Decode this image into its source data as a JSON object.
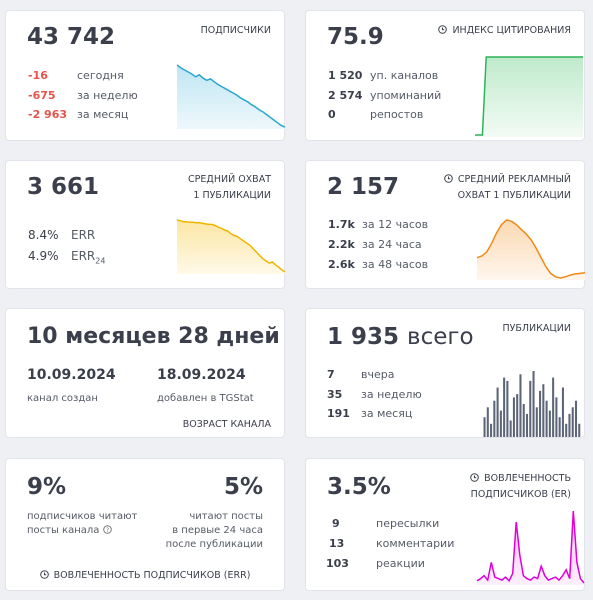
{
  "cards": [
    {
      "value": "43 742",
      "title": "ПОДПИСЧИКИ",
      "rows": [
        {
          "value": "-16",
          "label": "сегодня"
        },
        {
          "value": "-675",
          "label": "за неделю"
        },
        {
          "value": "-2 963",
          "label": "за месяц"
        }
      ],
      "sparkline": [
        100,
        96,
        93,
        90,
        87,
        83,
        86,
        81,
        78,
        80,
        76,
        72,
        69,
        66,
        63,
        60,
        57,
        53,
        50,
        47,
        43,
        40,
        36,
        33,
        29,
        25,
        21,
        17,
        13,
        11
      ]
    },
    {
      "value": "75.9",
      "title": "ИНДЕКС ЦИТИРОВАНИЯ",
      "rows": [
        {
          "value": "1 520",
          "label": "уп. каналов"
        },
        {
          "value": "2 574",
          "label": "упоминаний"
        },
        {
          "value": "0",
          "label": "репостов"
        }
      ],
      "sparkline": [
        0,
        0,
        0,
        100,
        100,
        100,
        100,
        100,
        100,
        100,
        100,
        100,
        100,
        100,
        100,
        100,
        100,
        100,
        100,
        100,
        100,
        100,
        100,
        100,
        100,
        100,
        100,
        100,
        100,
        100
      ]
    },
    {
      "value": "3 661",
      "title_lines": [
        "СРЕДНИЙ ОХВАТ",
        "1 ПУБЛИКАЦИИ"
      ],
      "rows": [
        {
          "value": "8.4%",
          "label": "ERR"
        },
        {
          "value": "4.9%",
          "label": "ERR",
          "sub": "24"
        }
      ],
      "sparkline": [
        100,
        99,
        97,
        97,
        96,
        96,
        95,
        95,
        94,
        93,
        92,
        92,
        90,
        87,
        85,
        82,
        80,
        75,
        72,
        70,
        66,
        62,
        58,
        54,
        48,
        42,
        36,
        30,
        26,
        22,
        24,
        19,
        15,
        10,
        6
      ]
    },
    {
      "value": "2 157",
      "title_lines": [
        "СРЕДНИЙ РЕКЛАМНЫЙ",
        "ОХВАТ 1 ПУБЛИКАЦИИ"
      ],
      "rows": [
        {
          "value": "1.7k",
          "label": "за 12 часов"
        },
        {
          "value": "2.2k",
          "label": "за 24 часа"
        },
        {
          "value": "2.6k",
          "label": "за 48 часов"
        }
      ],
      "sparkline": [
        35,
        38,
        45,
        60,
        78,
        92,
        100,
        98,
        92,
        84,
        76,
        66,
        52,
        36,
        20,
        8,
        2,
        0,
        2,
        5,
        7,
        8,
        9
      ]
    },
    {
      "value": "10 месяцев 28 дней",
      "dates": [
        {
          "value": "10.09.2024",
          "label": "канал создан"
        },
        {
          "value": "18.09.2024",
          "label": "добавлен в TGStat"
        }
      ],
      "footer": "ВОЗРАСТ КАНАЛА"
    },
    {
      "value": "1 935",
      "value_suffix": "всего",
      "title": "ПУБЛИКАЦИИ",
      "rows": [
        {
          "value": "7",
          "label": "вчера"
        },
        {
          "value": "35",
          "label": "за неделю"
        },
        {
          "value": "191",
          "label": "за месяц"
        }
      ],
      "bars": [
        30,
        45,
        20,
        55,
        75,
        40,
        90,
        85,
        25,
        60,
        65,
        95,
        50,
        35,
        85,
        100,
        45,
        70,
        80,
        55,
        40,
        90,
        60,
        30,
        75,
        20,
        35,
        45,
        55,
        20
      ]
    },
    {
      "left": {
        "value": "9%",
        "lines": [
          "подписчиков читают",
          "посты канала"
        ]
      },
      "right": {
        "value": "5%",
        "lines": [
          "читают посты",
          "в первые 24 часа",
          "после публикации"
        ]
      },
      "footer": "ВОВЛЕЧЕННОСТЬ ПОДПИСЧИКОВ (ERR)"
    },
    {
      "value": "3.5%",
      "title_lines": [
        "ВОВЛЕЧЕННОСТЬ",
        "ПОДПИСЧИКОВ (ER)"
      ],
      "rows": [
        {
          "value": "9",
          "label": "пересылки"
        },
        {
          "value": "13",
          "label": "комментарии"
        },
        {
          "value": "103",
          "label": "реакции"
        }
      ],
      "sparkline": [
        5,
        8,
        12,
        6,
        30,
        10,
        8,
        6,
        10,
        5,
        15,
        85,
        40,
        12,
        8,
        6,
        10,
        8,
        25,
        12,
        6,
        8,
        10,
        6,
        12,
        20,
        8,
        100,
        30,
        8,
        2
      ]
    }
  ]
}
